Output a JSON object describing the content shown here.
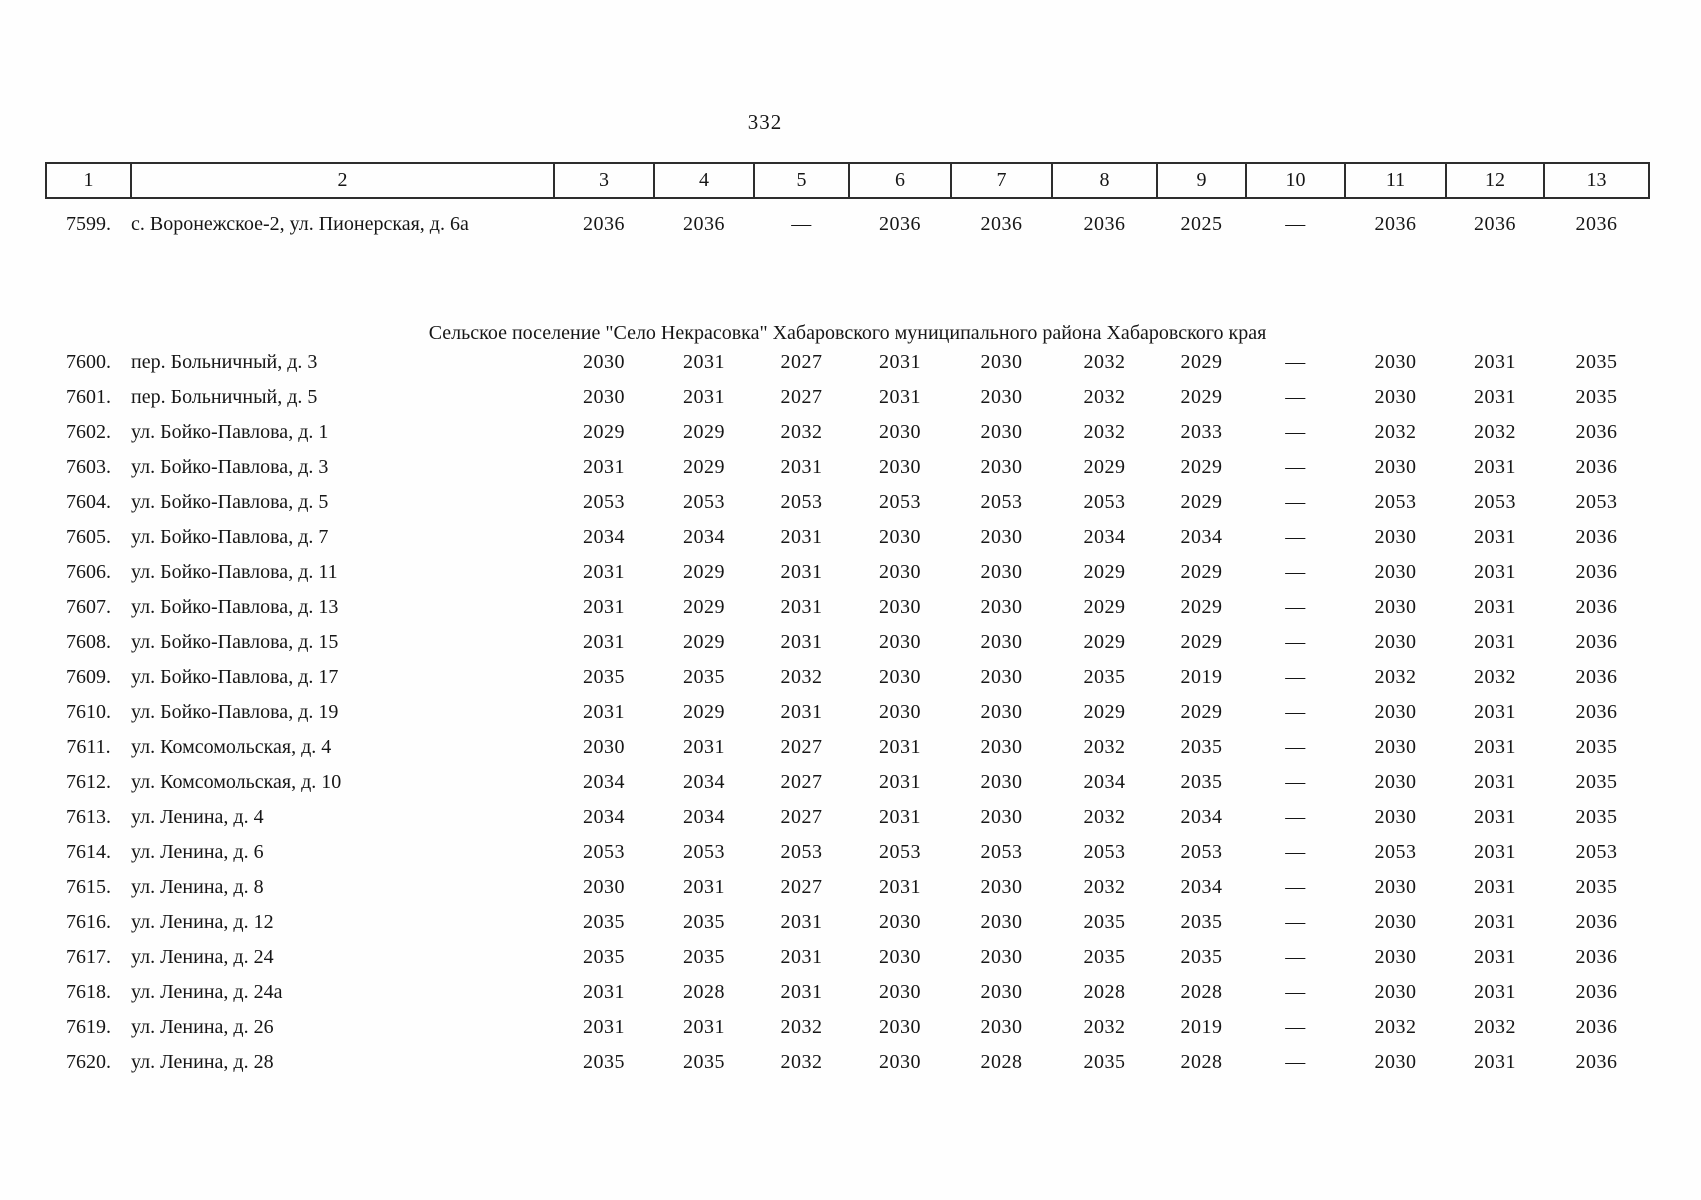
{
  "page_number": "332",
  "table": {
    "column_headers": [
      "1",
      "2",
      "3",
      "4",
      "5",
      "6",
      "7",
      "8",
      "9",
      "10",
      "11",
      "12",
      "13"
    ],
    "rows_before_section": [
      {
        "num": "7599.",
        "address": "с. Воронежское-2, ул. Пионерская, д. 6а",
        "values": [
          "2036",
          "2036",
          "—",
          "2036",
          "2036",
          "2036",
          "2025",
          "—",
          "2036",
          "2036",
          "2036"
        ]
      }
    ],
    "section_title": "Сельское поселение \"Село Некрасовка\" Хабаровского муниципального района Хабаровского края",
    "rows": [
      {
        "num": "7600.",
        "address": "пер. Больничный, д. 3",
        "values": [
          "2030",
          "2031",
          "2027",
          "2031",
          "2030",
          "2032",
          "2029",
          "—",
          "2030",
          "2031",
          "2035"
        ]
      },
      {
        "num": "7601.",
        "address": "пер. Больничный, д. 5",
        "values": [
          "2030",
          "2031",
          "2027",
          "2031",
          "2030",
          "2032",
          "2029",
          "—",
          "2030",
          "2031",
          "2035"
        ]
      },
      {
        "num": "7602.",
        "address": "ул. Бойко-Павлова, д. 1",
        "values": [
          "2029",
          "2029",
          "2032",
          "2030",
          "2030",
          "2032",
          "2033",
          "—",
          "2032",
          "2032",
          "2036"
        ]
      },
      {
        "num": "7603.",
        "address": "ул. Бойко-Павлова, д. 3",
        "values": [
          "2031",
          "2029",
          "2031",
          "2030",
          "2030",
          "2029",
          "2029",
          "—",
          "2030",
          "2031",
          "2036"
        ]
      },
      {
        "num": "7604.",
        "address": "ул. Бойко-Павлова, д. 5",
        "values": [
          "2053",
          "2053",
          "2053",
          "2053",
          "2053",
          "2053",
          "2029",
          "—",
          "2053",
          "2053",
          "2053"
        ]
      },
      {
        "num": "7605.",
        "address": "ул. Бойко-Павлова, д. 7",
        "values": [
          "2034",
          "2034",
          "2031",
          "2030",
          "2030",
          "2034",
          "2034",
          "—",
          "2030",
          "2031",
          "2036"
        ]
      },
      {
        "num": "7606.",
        "address": "ул. Бойко-Павлова, д. 11",
        "values": [
          "2031",
          "2029",
          "2031",
          "2030",
          "2030",
          "2029",
          "2029",
          "—",
          "2030",
          "2031",
          "2036"
        ]
      },
      {
        "num": "7607.",
        "address": "ул. Бойко-Павлова, д. 13",
        "values": [
          "2031",
          "2029",
          "2031",
          "2030",
          "2030",
          "2029",
          "2029",
          "—",
          "2030",
          "2031",
          "2036"
        ]
      },
      {
        "num": "7608.",
        "address": "ул. Бойко-Павлова, д. 15",
        "values": [
          "2031",
          "2029",
          "2031",
          "2030",
          "2030",
          "2029",
          "2029",
          "—",
          "2030",
          "2031",
          "2036"
        ]
      },
      {
        "num": "7609.",
        "address": "ул. Бойко-Павлова, д. 17",
        "values": [
          "2035",
          "2035",
          "2032",
          "2030",
          "2030",
          "2035",
          "2019",
          "—",
          "2032",
          "2032",
          "2036"
        ]
      },
      {
        "num": "7610.",
        "address": "ул. Бойко-Павлова, д. 19",
        "values": [
          "2031",
          "2029",
          "2031",
          "2030",
          "2030",
          "2029",
          "2029",
          "—",
          "2030",
          "2031",
          "2036"
        ]
      },
      {
        "num": "7611.",
        "address": "ул. Комсомольская, д. 4",
        "values": [
          "2030",
          "2031",
          "2027",
          "2031",
          "2030",
          "2032",
          "2035",
          "—",
          "2030",
          "2031",
          "2035"
        ]
      },
      {
        "num": "7612.",
        "address": "ул. Комсомольская, д. 10",
        "values": [
          "2034",
          "2034",
          "2027",
          "2031",
          "2030",
          "2034",
          "2035",
          "—",
          "2030",
          "2031",
          "2035"
        ]
      },
      {
        "num": "7613.",
        "address": "ул. Ленина, д. 4",
        "values": [
          "2034",
          "2034",
          "2027",
          "2031",
          "2030",
          "2032",
          "2034",
          "—",
          "2030",
          "2031",
          "2035"
        ]
      },
      {
        "num": "7614.",
        "address": "ул. Ленина, д. 6",
        "values": [
          "2053",
          "2053",
          "2053",
          "2053",
          "2053",
          "2053",
          "2053",
          "—",
          "2053",
          "2031",
          "2053"
        ]
      },
      {
        "num": "7615.",
        "address": "ул. Ленина, д. 8",
        "values": [
          "2030",
          "2031",
          "2027",
          "2031",
          "2030",
          "2032",
          "2034",
          "—",
          "2030",
          "2031",
          "2035"
        ]
      },
      {
        "num": "7616.",
        "address": "ул. Ленина, д. 12",
        "values": [
          "2035",
          "2035",
          "2031",
          "2030",
          "2030",
          "2035",
          "2035",
          "—",
          "2030",
          "2031",
          "2036"
        ]
      },
      {
        "num": "7617.",
        "address": "ул. Ленина, д. 24",
        "values": [
          "2035",
          "2035",
          "2031",
          "2030",
          "2030",
          "2035",
          "2035",
          "—",
          "2030",
          "2031",
          "2036"
        ]
      },
      {
        "num": "7618.",
        "address": "ул. Ленина, д. 24а",
        "values": [
          "2031",
          "2028",
          "2031",
          "2030",
          "2030",
          "2028",
          "2028",
          "—",
          "2030",
          "2031",
          "2036"
        ]
      },
      {
        "num": "7619.",
        "address": "ул. Ленина, д. 26",
        "values": [
          "2031",
          "2031",
          "2032",
          "2030",
          "2030",
          "2032",
          "2019",
          "—",
          "2032",
          "2032",
          "2036"
        ]
      },
      {
        "num": "7620.",
        "address": "ул. Ленина, д. 28",
        "values": [
          "2035",
          "2035",
          "2032",
          "2030",
          "2028",
          "2035",
          "2028",
          "—",
          "2030",
          "2031",
          "2036"
        ]
      }
    ]
  }
}
